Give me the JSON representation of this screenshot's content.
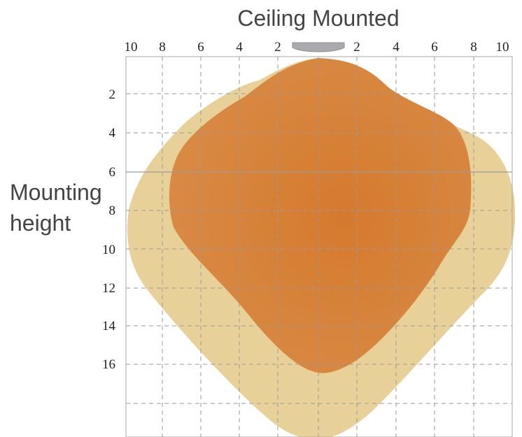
{
  "title": "Ceiling Mounted",
  "y_label": [
    "Mounting",
    "height"
  ],
  "top_ticks_left": [
    "10",
    "8",
    "6",
    "4",
    "2"
  ],
  "top_ticks_right": [
    "2",
    "4",
    "6",
    "8",
    "10"
  ],
  "left_ticks": [
    "2",
    "4",
    "6",
    "8",
    "10",
    "12",
    "14",
    "16"
  ],
  "mounting_height": 6,
  "colors": {
    "outer_pattern": "#e8d198",
    "inner_pattern": "#d47d33",
    "fixture": "#a9a9ae"
  }
}
